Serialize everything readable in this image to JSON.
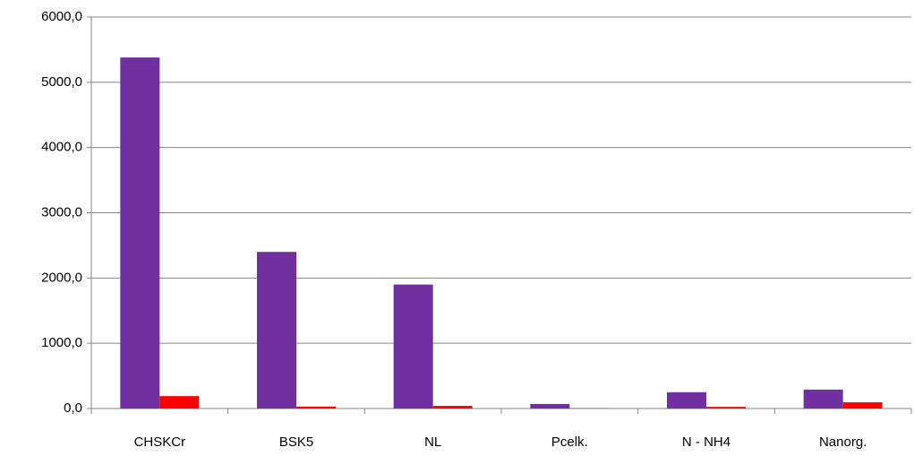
{
  "chart_data": {
    "type": "bar",
    "categories": [
      "CHSKCr",
      "BSK5",
      "NL",
      "Pcelk.",
      "N - NH4",
      "Nanorg."
    ],
    "series": [
      {
        "color": "#7030a0",
        "values": [
          5380,
          2400,
          1900,
          70,
          250,
          290
        ]
      },
      {
        "color": "#ff0000",
        "values": [
          190,
          30,
          40,
          5,
          25,
          95
        ]
      }
    ],
    "ylim": [
      0,
      6000
    ],
    "yticks": [
      {
        "value": 0,
        "label": "0,0"
      },
      {
        "value": 1000,
        "label": "1000,0"
      },
      {
        "value": 2000,
        "label": "2000,0"
      },
      {
        "value": 3000,
        "label": "3000,0"
      },
      {
        "value": 4000,
        "label": "4000,0"
      },
      {
        "value": 5000,
        "label": "5000,0"
      },
      {
        "value": 6000,
        "label": "6000,0"
      }
    ],
    "grid": true
  }
}
